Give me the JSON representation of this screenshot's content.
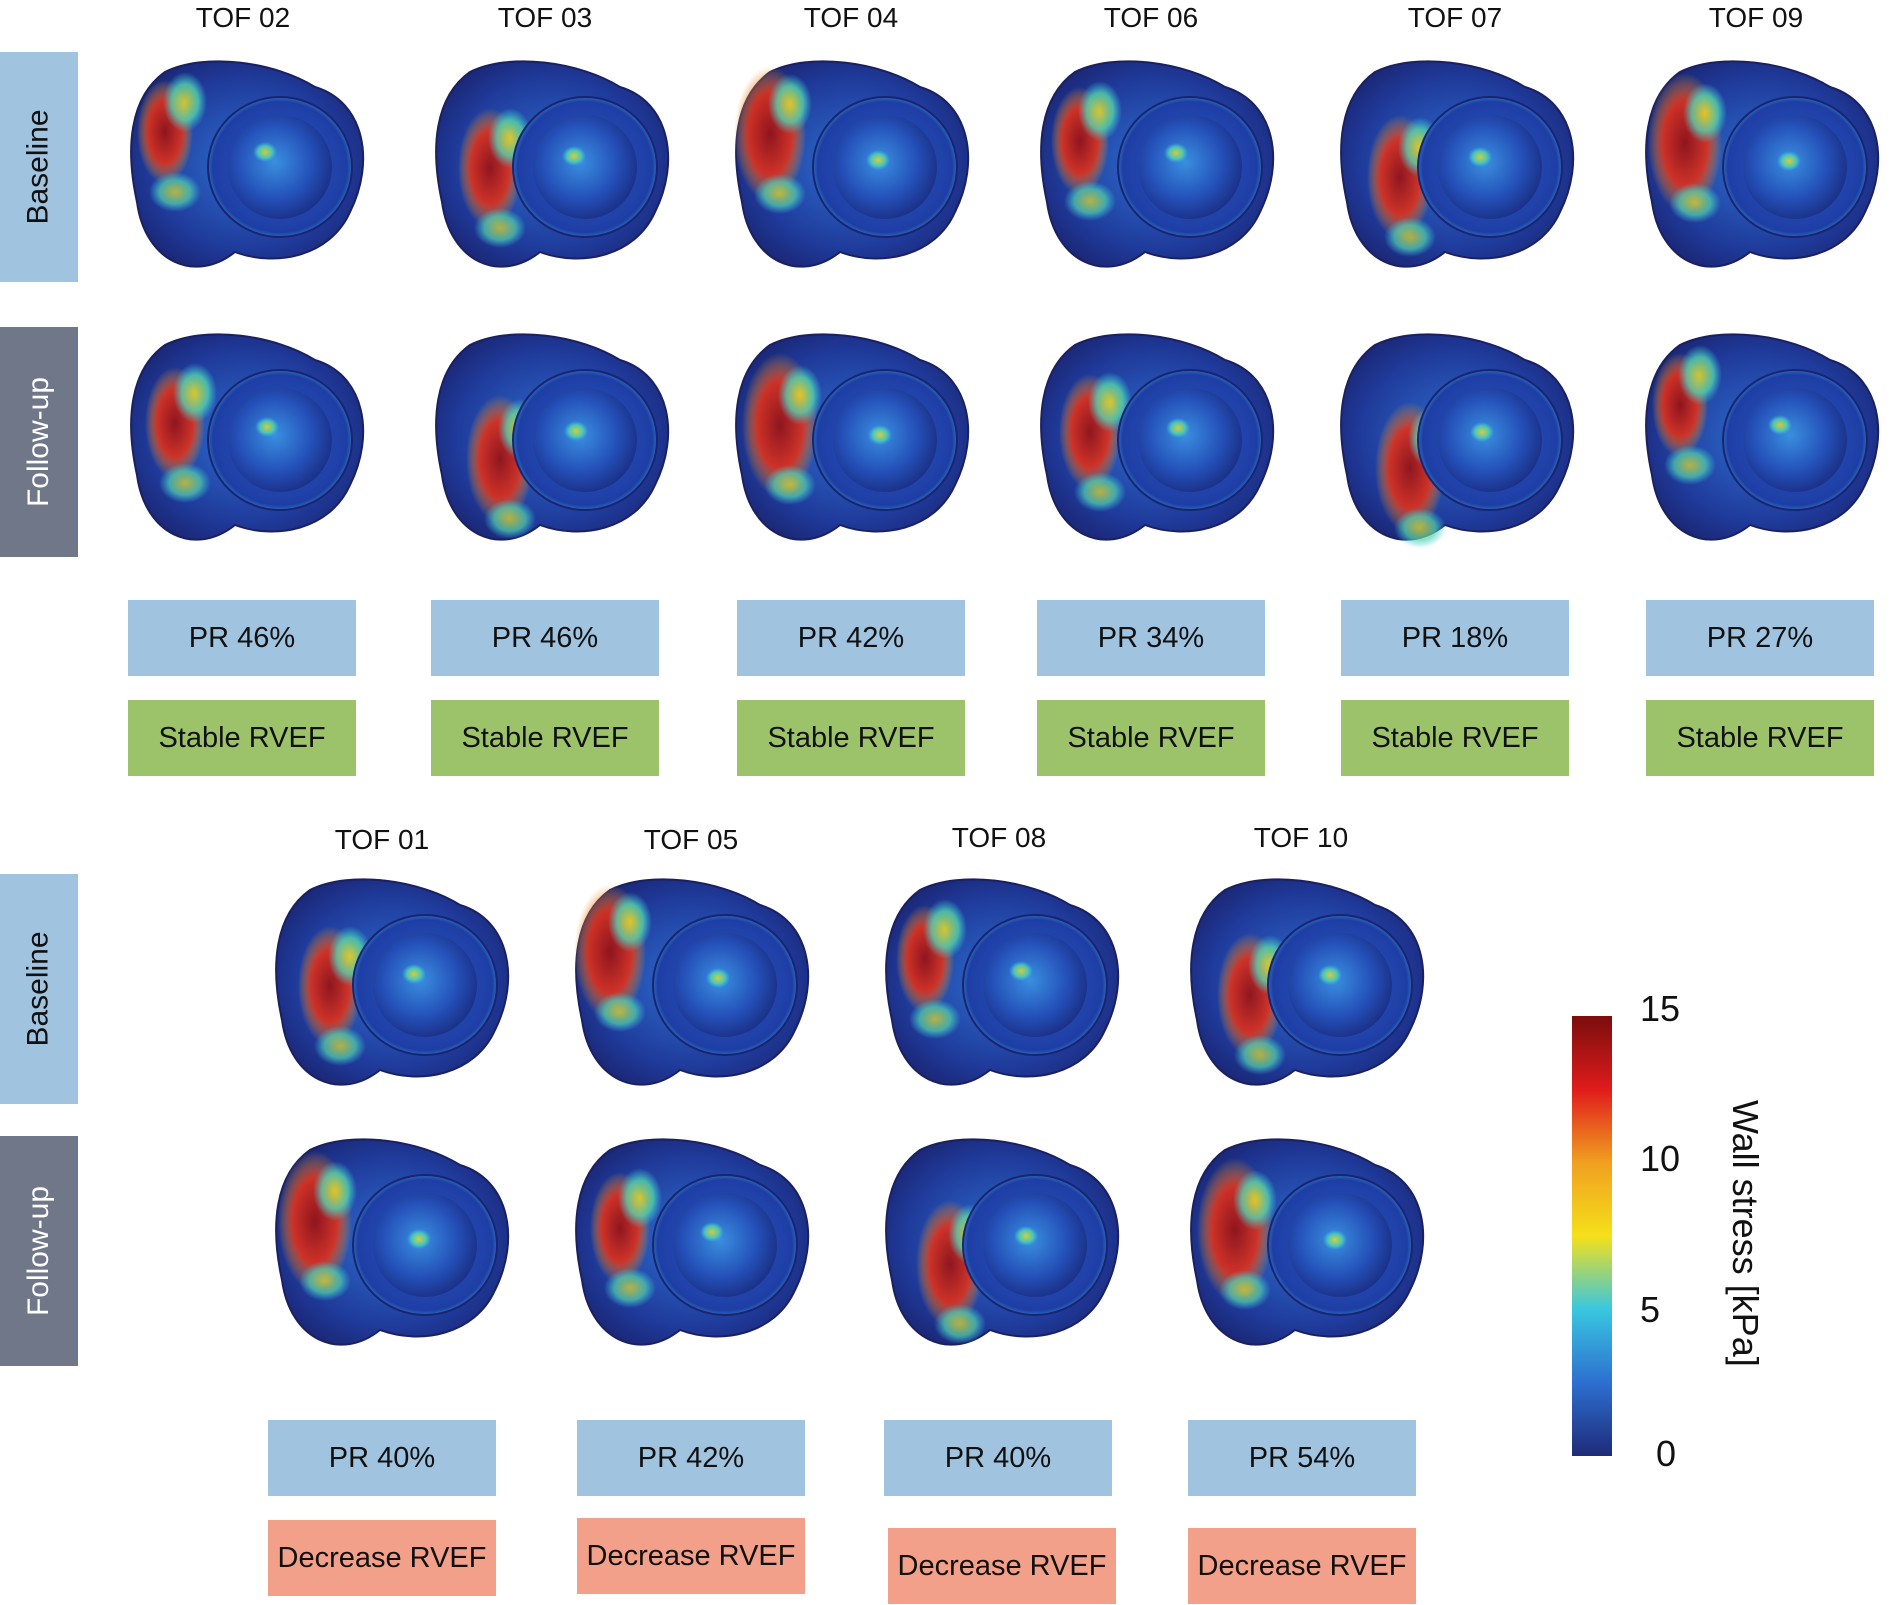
{
  "top_group": {
    "columns": [
      {
        "name": "TOF 02",
        "pr": "PR 46%",
        "rvef": "Stable RVEF"
      },
      {
        "name": "TOF 03",
        "pr": "PR 46%",
        "rvef": "Stable RVEF"
      },
      {
        "name": "TOF 04",
        "pr": "PR 42%",
        "rvef": "Stable RVEF"
      },
      {
        "name": "TOF 06",
        "pr": "PR 34%",
        "rvef": "Stable RVEF"
      },
      {
        "name": "TOF 07",
        "pr": "PR 18%",
        "rvef": "Stable RVEF"
      },
      {
        "name": "TOF 09",
        "pr": "PR 27%",
        "rvef": "Stable RVEF"
      }
    ]
  },
  "bottom_group": {
    "columns": [
      {
        "name": "TOF 01",
        "pr": "PR 40%",
        "rvef": "Decrease RVEF"
      },
      {
        "name": "TOF 05",
        "pr": "PR 42%",
        "rvef": "Decrease RVEF"
      },
      {
        "name": "TOF 08",
        "pr": "PR 40%",
        "rvef": "Decrease RVEF"
      },
      {
        "name": "TOF 10",
        "pr": "PR 54%",
        "rvef": "Decrease RVEF"
      }
    ]
  },
  "row_labels": {
    "baseline": "Baseline",
    "followup": "Follow-up"
  },
  "colorbar": {
    "title": "Wall stress [kPa]",
    "ticks": [
      "15",
      "10",
      "5",
      "0"
    ],
    "colors": [
      "#7a0d0d",
      "#e01b1b",
      "#f0a020",
      "#f5e01a",
      "#39c7e0",
      "#2d6fd0",
      "#1f2a78"
    ]
  },
  "colors": {
    "pr_box": "#a0c3e0",
    "stable_box": "#9dc36a",
    "decrease_box": "#f2a08a",
    "baseline_label": "#a0c3e0",
    "followup_label": "#6f7789"
  }
}
